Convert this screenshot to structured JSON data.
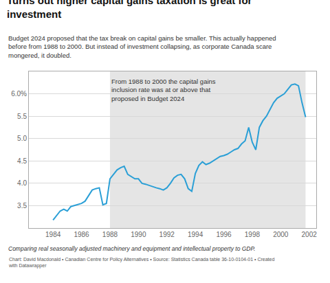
{
  "chart_data": {
    "type": "line",
    "title": "Turns out higher capital gains taxation is great for\ninvestment",
    "subtitle": "Budget 2024 proposed that the tax break on capital gains be smaller. This actually happened\nbefore from 1988 to 2000. But instead of investment collapsing, as corporate Canada scare\nmongered, it doubled.",
    "annotation": "From 1988 to 2000 the capital gains\ninclusion rate was at or above that\nproposed in Budget 2024",
    "footnote": "Comparing real seasonally adjusted machinery and equipment and intellectual property to GDP.",
    "source": "Chart: David Macdonald • Canadian Centre for Policy Alternatives • Source: Statistics Canada table 36-10-0104-01 • Created\nwith Datawrapper",
    "shaded_region": {
      "start": 1988,
      "end": 2001.75,
      "color": "#e5e5e5"
    },
    "color": "#2a9fd6",
    "x": [
      1984.0,
      1984.25,
      1984.5,
      1984.75,
      1985.0,
      1985.25,
      1985.5,
      1985.75,
      1986.0,
      1986.25,
      1986.5,
      1986.75,
      1987.0,
      1987.25,
      1987.5,
      1987.75,
      1988.0,
      1988.25,
      1988.5,
      1988.75,
      1989.0,
      1989.25,
      1989.5,
      1989.75,
      1990.0,
      1990.25,
      1990.5,
      1990.75,
      1991.0,
      1991.25,
      1991.5,
      1991.75,
      1992.0,
      1992.25,
      1992.5,
      1992.75,
      1993.0,
      1993.25,
      1993.5,
      1993.75,
      1994.0,
      1994.25,
      1994.5,
      1994.75,
      1995.0,
      1995.25,
      1995.5,
      1995.75,
      1996.0,
      1996.25,
      1996.5,
      1996.75,
      1997.0,
      1997.25,
      1997.5,
      1997.75,
      1998.0,
      1998.25,
      1998.5,
      1998.75,
      1999.0,
      1999.25,
      1999.5,
      1999.75,
      2000.0,
      2000.25,
      2000.5,
      2000.75,
      2001.0,
      2001.25,
      2001.5,
      2001.75
    ],
    "values": [
      3.18,
      3.28,
      3.38,
      3.42,
      3.38,
      3.48,
      3.5,
      3.52,
      3.55,
      3.6,
      3.72,
      3.85,
      3.88,
      3.9,
      3.52,
      3.55,
      4.1,
      4.2,
      4.3,
      4.35,
      4.38,
      4.2,
      4.15,
      4.1,
      4.1,
      4.0,
      3.98,
      3.95,
      3.92,
      3.9,
      3.88,
      3.85,
      3.9,
      4.0,
      4.12,
      4.18,
      4.2,
      4.1,
      3.88,
      3.82,
      4.22,
      4.4,
      4.48,
      4.42,
      4.45,
      4.5,
      4.55,
      4.6,
      4.62,
      4.65,
      4.7,
      4.75,
      4.78,
      4.88,
      4.95,
      5.25,
      4.92,
      4.75,
      5.25,
      5.4,
      5.5,
      5.65,
      5.8,
      5.9,
      5.95,
      6.0,
      6.1,
      6.2,
      6.22,
      6.18,
      5.8,
      5.48
    ],
    "xlim": [
      1982.3,
      2002.5
    ],
    "xticks": [
      1984,
      1986,
      1988,
      1990,
      1992,
      1994,
      1996,
      1998,
      2000,
      2002
    ],
    "ylim": [
      3.0,
      6.5
    ],
    "yticks": [
      3.5,
      {
        "value": 4,
        "label": "4.0"
      },
      4.5,
      {
        "value": 5,
        "label": "5.0"
      },
      5.5,
      {
        "value": 6,
        "label": "6.0%"
      }
    ],
    "grid": true
  }
}
